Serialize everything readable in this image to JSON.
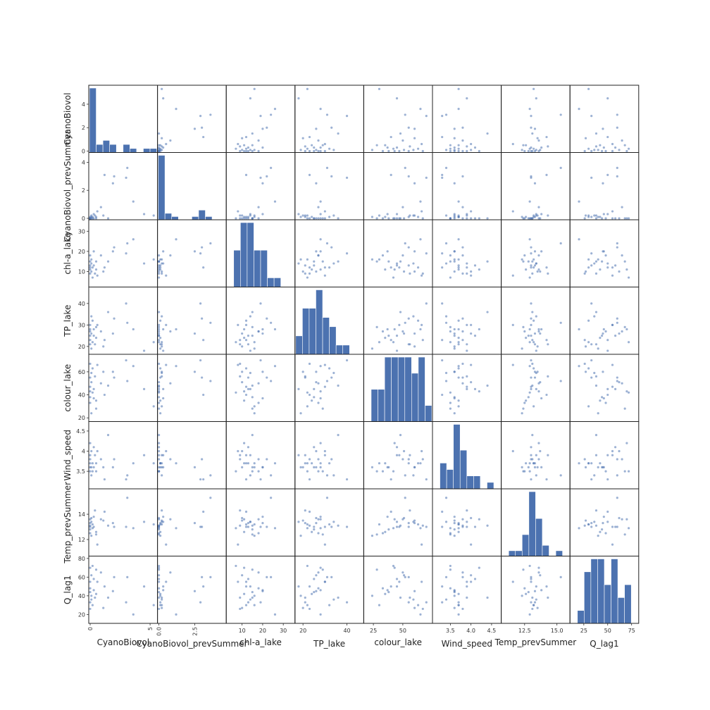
{
  "chart_data": {
    "type": "scatter",
    "variables": [
      {
        "name": "CyanoBiovol",
        "range": [
          0,
          5.5
        ],
        "ticks": [
          0,
          2,
          4
        ],
        "xticks": [
          0,
          5
        ],
        "xtick_labels": [
          "0",
          "5"
        ],
        "xtick_rotated": true
      },
      {
        "name": "CyanoBiovol_prevSummer",
        "range": [
          0,
          4.6
        ],
        "ticks": [
          0,
          2,
          4
        ],
        "xticks": [
          0.0,
          2.5
        ],
        "xtick_labels": [
          "0.0",
          "2.5"
        ],
        "xtick_rotated": true
      },
      {
        "name": "chl-a_lake",
        "range": [
          3,
          35
        ],
        "ticks": [
          10,
          20,
          30
        ],
        "xticks": [
          10,
          20,
          30
        ],
        "xtick_labels": [
          "10",
          "20",
          "30"
        ]
      },
      {
        "name": "TP_lake",
        "range": [
          17,
          47
        ],
        "ticks": [
          20,
          30,
          40
        ],
        "xticks": [
          20,
          40
        ],
        "xtick_labels": [
          "20",
          "40"
        ]
      },
      {
        "name": "colour_lake",
        "range": [
          18,
          74
        ],
        "ticks": [
          20,
          40,
          60
        ],
        "xticks": [
          25,
          50
        ],
        "xtick_labels": [
          "25",
          "50"
        ]
      },
      {
        "name": "Wind_speed",
        "range": [
          3.1,
          4.7
        ],
        "ticks": [
          3.5,
          4.0,
          4.5
        ],
        "xticks": [
          3.5,
          4.0,
          4.5
        ],
        "xtick_labels": [
          "3.5",
          "4.0",
          "4.5"
        ]
      },
      {
        "name": "Temp_prevSummer",
        "range": [
          10.8,
          15.9
        ],
        "ticks": [
          12,
          14
        ],
        "xticks": [
          12.5,
          15.0
        ],
        "xtick_labels": [
          "12.5",
          "15.0"
        ]
      },
      {
        "name": "Q_lag1",
        "range": [
          12,
          81
        ],
        "ticks": [
          20,
          40,
          60,
          80
        ],
        "xticks": [
          25,
          50,
          75
        ],
        "xtick_labels": [
          "25",
          "50",
          "75"
        ]
      }
    ],
    "observations": [
      [
        5.3,
        0.2,
        16,
        22,
        30,
        3.7,
        13.2,
        30
      ],
      [
        4.5,
        0.3,
        14,
        18,
        45,
        3.9,
        13.4,
        50
      ],
      [
        3.6,
        1.2,
        26,
        28,
        65,
        3.7,
        12.9,
        20
      ],
      [
        3.1,
        3.6,
        24,
        31,
        52,
        3.4,
        15.3,
        60
      ],
      [
        3.0,
        2.9,
        19,
        40,
        70,
        3.3,
        13.0,
        33
      ],
      [
        2.0,
        3.0,
        22,
        33,
        55,
        3.8,
        13.0,
        60
      ],
      [
        1.9,
        2.5,
        20,
        26,
        60,
        3.6,
        13.3,
        45
      ],
      [
        1.5,
        0.0,
        15,
        36,
        48,
        4.4,
        13.1,
        38
      ],
      [
        1.2,
        3.1,
        12,
        23,
        40,
        3.3,
        14.2,
        50
      ],
      [
        1.1,
        0.2,
        10,
        20,
        60,
        3.6,
        13.5,
        27
      ],
      [
        0.9,
        0.8,
        18,
        27,
        50,
        3.8,
        13.6,
        65
      ],
      [
        0.6,
        0.5,
        8,
        30,
        66,
        4.0,
        11.6,
        55
      ],
      [
        0.5,
        0.1,
        11,
        24,
        35,
        3.7,
        12.6,
        42
      ],
      [
        0.5,
        0.0,
        15,
        29,
        28,
        3.5,
        12.4,
        68
      ],
      [
        0.4,
        0.2,
        9,
        21,
        56,
        3.9,
        14.3,
        38
      ],
      [
        0.3,
        0.0,
        13,
        25,
        45,
        4.1,
        13.0,
        58
      ],
      [
        0.3,
        0.3,
        20,
        28,
        37,
        3.6,
        13.8,
        46
      ],
      [
        0.2,
        0.1,
        12,
        32,
        63,
        3.7,
        13.2,
        30
      ],
      [
        0.2,
        0.0,
        7,
        22,
        42,
        3.5,
        12.9,
        72
      ],
      [
        0.1,
        0.2,
        14,
        34,
        59,
        3.4,
        13.4,
        36
      ],
      [
        0.1,
        0.0,
        10,
        26,
        51,
        4.0,
        13.7,
        62
      ],
      [
        0.1,
        0.1,
        16,
        19,
        24,
        3.6,
        12.3,
        40
      ],
      [
        0.0,
        0.0,
        12,
        30,
        47,
        3.9,
        13.0,
        55
      ],
      [
        0.0,
        0.0,
        9,
        23,
        67,
        3.8,
        13.1,
        26
      ],
      [
        0.0,
        0.0,
        18,
        27,
        33,
        3.5,
        12.5,
        48
      ],
      [
        0.0,
        0.1,
        13,
        21,
        55,
        3.7,
        13.3,
        33
      ],
      [
        0.0,
        0.0,
        11,
        28,
        43,
        4.2,
        13.6,
        70
      ],
      [
        0.0,
        0.0,
        15,
        25,
        38,
        3.6,
        12.8,
        44
      ]
    ]
  }
}
